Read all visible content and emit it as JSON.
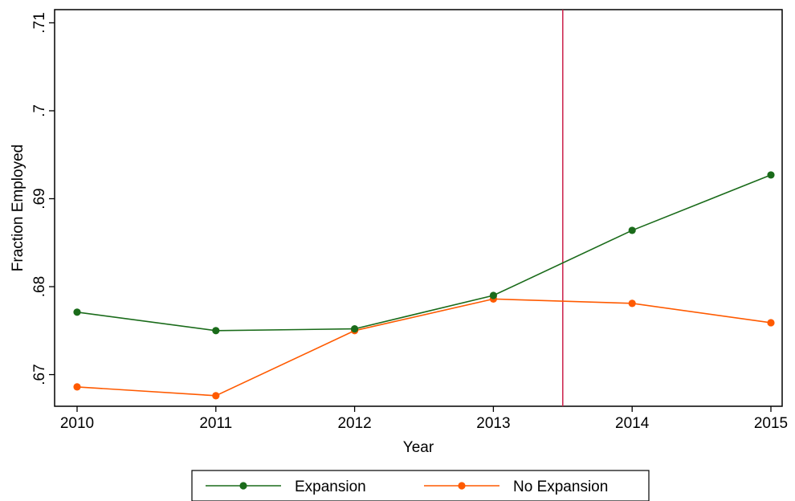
{
  "chart_data": {
    "type": "line",
    "title": "",
    "xlabel": "Year",
    "ylabel": "Fraction Employed",
    "x": [
      2010,
      2011,
      2012,
      2013,
      2014,
      2015
    ],
    "x_tick_labels": [
      "2010",
      "2011",
      "2012",
      "2013",
      "2014",
      "2015"
    ],
    "y_ticks": [
      0.67,
      0.68,
      0.69,
      0.7,
      0.71
    ],
    "y_tick_labels": [
      ".67",
      ".68",
      ".69",
      ".7",
      ".71"
    ],
    "xlim": [
      2010,
      2015
    ],
    "ylim": [
      0.6664,
      0.7115
    ],
    "grid": false,
    "legend_position": "bottom",
    "reference_line": {
      "x": 2013.5,
      "color": "#cc1f4a"
    },
    "series": [
      {
        "name": "Expansion",
        "color": "#1a6b1a",
        "values": [
          0.6771,
          0.675,
          0.6752,
          0.679,
          0.6864,
          0.6927
        ]
      },
      {
        "name": "No Expansion",
        "color": "#ff5a00",
        "values": [
          0.6686,
          0.6676,
          0.675,
          0.6786,
          0.6781,
          0.6759
        ]
      }
    ]
  }
}
